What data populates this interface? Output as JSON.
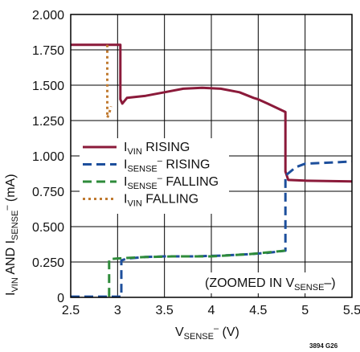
{
  "chart_data": {
    "type": "line",
    "xlim": [
      2.5,
      5.5
    ],
    "ylim": [
      0,
      2.0
    ],
    "x_ticks": [
      2.5,
      3,
      3.5,
      4,
      4.5,
      5,
      5.5
    ],
    "x_tick_labels": [
      "2.5",
      "3",
      "3.5",
      "4",
      "4.5",
      "5",
      "5.5"
    ],
    "y_ticks": [
      0,
      0.25,
      0.5,
      0.75,
      1.0,
      1.25,
      1.5,
      1.75,
      2.0
    ],
    "y_tick_labels": [
      "0",
      "0.250",
      "0.500",
      "0.750",
      "1.000",
      "1.250",
      "1.500",
      "1.750",
      "2.000"
    ],
    "grid": true,
    "legend_position": "left-center",
    "xlabel": {
      "main": "V",
      "sub": "SENSE",
      "sup": "–",
      "unit": " (V)"
    },
    "ylabel": {
      "p1": "I",
      "p1sub": "VIN",
      "p2": " AND I",
      "p2sub": "SENSE",
      "p2sup": "–",
      "unit": " (mA)"
    },
    "annotation": {
      "pre": "(ZOOMED IN V",
      "sub": "SENSE",
      "post": "–)"
    },
    "figure_id": "3894 G26",
    "series": [
      {
        "legend_main": "I",
        "legend_sub": "VIN",
        "legend_sup": "",
        "legend_rest": " RISING",
        "color": "#8b1a3a",
        "dash": "solid",
        "x": [
          2.5,
          3.03,
          3.03,
          3.05,
          3.1,
          3.3,
          3.5,
          3.7,
          3.9,
          4.1,
          4.3,
          4.45,
          4.5,
          4.6,
          4.79,
          4.79,
          4.82,
          5.0,
          5.5
        ],
        "y": [
          1.785,
          1.785,
          1.4,
          1.37,
          1.41,
          1.425,
          1.45,
          1.475,
          1.482,
          1.475,
          1.45,
          1.41,
          1.4,
          1.37,
          1.31,
          0.89,
          0.83,
          0.825,
          0.82
        ]
      },
      {
        "legend_main": "I",
        "legend_sub": "SENSE",
        "legend_sup": "–",
        "legend_rest": " RISING",
        "color": "#1d4f9c",
        "dash": "dashed",
        "x": [
          2.5,
          3.04,
          3.04,
          3.1,
          3.3,
          3.5,
          3.8,
          4.1,
          4.4,
          4.6,
          4.79,
          4.79,
          4.9,
          5.0,
          5.5
        ],
        "y": [
          0.005,
          0.005,
          0.26,
          0.275,
          0.285,
          0.29,
          0.29,
          0.295,
          0.305,
          0.315,
          0.33,
          0.86,
          0.92,
          0.945,
          0.96
        ]
      },
      {
        "legend_main": "I",
        "legend_sub": "SENSE",
        "legend_sup": "–",
        "legend_rest": " FALLING",
        "color": "#2e8b3a",
        "dash": "dashed",
        "x": [
          2.91,
          2.91,
          3.0,
          3.3,
          3.6,
          4.0,
          4.4,
          4.79
        ],
        "y": [
          0.005,
          0.27,
          0.275,
          0.285,
          0.29,
          0.29,
          0.305,
          0.33
        ]
      },
      {
        "legend_main": "I",
        "legend_sub": "VIN",
        "legend_sup": "",
        "legend_rest": " FALLING",
        "color": "#c07a30",
        "dash": "dotted",
        "x": [
          2.89,
          2.89,
          2.91,
          2.93
        ],
        "y": [
          1.785,
          1.27,
          1.3,
          1.35
        ]
      }
    ]
  }
}
